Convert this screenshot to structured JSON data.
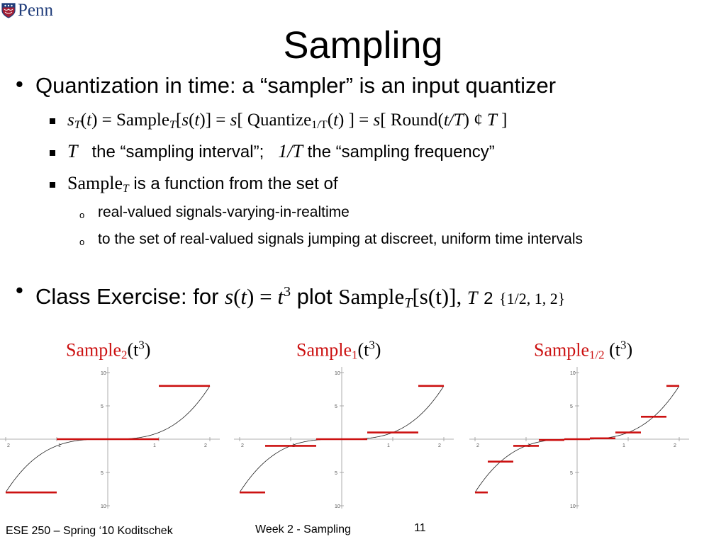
{
  "logo": {
    "text": "Penn",
    "icon": "penn-shield-icon"
  },
  "title": "Sampling",
  "bullets": {
    "b1": "Quantization in time: a “sampler” is an input quantizer",
    "eq": {
      "s": "s",
      "T": "T",
      "t": "t",
      "part1": "(",
      "part2": ") = Sample",
      "part3": "[",
      "part4": "(",
      "part5": ")] = ",
      "part6": "[ Quantize",
      "sub1T": "1/T",
      "part7": "(",
      "part8": ") ] = ",
      "part9": "[ Round(",
      "tT": "t/T",
      "part10": ") ¢ ",
      "part11": " ]"
    },
    "b3": {
      "T": "T",
      "text1": "the “sampling interval”;",
      "invT": "1/T",
      "text2": "the “sampling frequency”"
    },
    "b4": {
      "sample": "Sample",
      "T": "T",
      "text": "is a function from the set of"
    },
    "sub1": "real-valued signals-varying-in-realtime",
    "sub2": "to the set of real-valued signals jumping at discreet, uniform time intervals",
    "b5": {
      "text1": "Class Exercise: for ",
      "s": "s",
      "t": "t",
      "eq": ") = ",
      "exp": "3",
      "text2": " plot ",
      "sample": "Sample",
      "T": "T",
      "args": "[s(t)], ",
      "T2": "T",
      "elem": "2",
      "set": "{1/2, 1, 2}"
    }
  },
  "chart_titles": [
    {
      "main": "Sample",
      "sub": "2",
      "arg": "(t",
      "exp": "3",
      "close": ")"
    },
    {
      "main": "Sample",
      "sub": "1",
      "arg": "(t",
      "exp": "3",
      "close": ")"
    },
    {
      "main": "Sample",
      "sub": "1/2",
      "arg": " (t",
      "exp": "3",
      "close": ")"
    }
  ],
  "chart_data": [
    {
      "type": "line",
      "title": "Sample2(t3)",
      "xlim": [
        -2,
        2
      ],
      "ylim": [
        -10,
        10
      ],
      "x_ticks": [
        "2",
        "1",
        "1",
        "2"
      ],
      "y_ticks": [
        "10",
        "5",
        "5",
        "10"
      ],
      "curve": "t^3",
      "sample_period": 2,
      "steps": [
        {
          "x0": -2,
          "x1": -1,
          "y": -8
        },
        {
          "x0": -1,
          "x1": 1,
          "y": 0
        },
        {
          "x0": 1,
          "x1": 2,
          "y": 8
        }
      ]
    },
    {
      "type": "line",
      "title": "Sample1(t3)",
      "xlim": [
        -2,
        2
      ],
      "ylim": [
        -10,
        10
      ],
      "x_ticks": [
        "2",
        "1",
        "1",
        "2"
      ],
      "y_ticks": [
        "10",
        "5",
        "5",
        "10"
      ],
      "curve": "t^3",
      "sample_period": 1,
      "steps": [
        {
          "x0": -2,
          "x1": -1.5,
          "y": -8
        },
        {
          "x0": -1.5,
          "x1": -0.5,
          "y": -1
        },
        {
          "x0": -0.5,
          "x1": 0.5,
          "y": 0
        },
        {
          "x0": 0.5,
          "x1": 1.5,
          "y": 1
        },
        {
          "x0": 1.5,
          "x1": 2,
          "y": 8
        }
      ]
    },
    {
      "type": "line",
      "title": "Sample1/2(t3)",
      "xlim": [
        -2,
        2
      ],
      "ylim": [
        -10,
        10
      ],
      "x_ticks": [
        "2",
        "1",
        "1",
        "2"
      ],
      "y_ticks": [
        "10",
        "5",
        "5",
        "10"
      ],
      "curve": "t^3",
      "sample_period": 0.5,
      "steps": [
        {
          "x0": -2,
          "x1": -1.75,
          "y": -8
        },
        {
          "x0": -1.75,
          "x1": -1.25,
          "y": -3.375
        },
        {
          "x0": -1.25,
          "x1": -0.75,
          "y": -1
        },
        {
          "x0": -0.75,
          "x1": -0.25,
          "y": -0.125
        },
        {
          "x0": -0.25,
          "x1": 0.25,
          "y": 0
        },
        {
          "x0": 0.25,
          "x1": 0.75,
          "y": 0.125
        },
        {
          "x0": 0.75,
          "x1": 1.25,
          "y": 1
        },
        {
          "x0": 1.25,
          "x1": 1.75,
          "y": 3.375
        },
        {
          "x0": 1.75,
          "x1": 2,
          "y": 8
        }
      ]
    }
  ],
  "footer": {
    "left": "ESE 250 – Spring ‘10  Koditschek",
    "center": "Week 2 - Sampling",
    "page": "11"
  },
  "colors": {
    "accent": "#cc1111",
    "logo": "#1f3c7a"
  }
}
